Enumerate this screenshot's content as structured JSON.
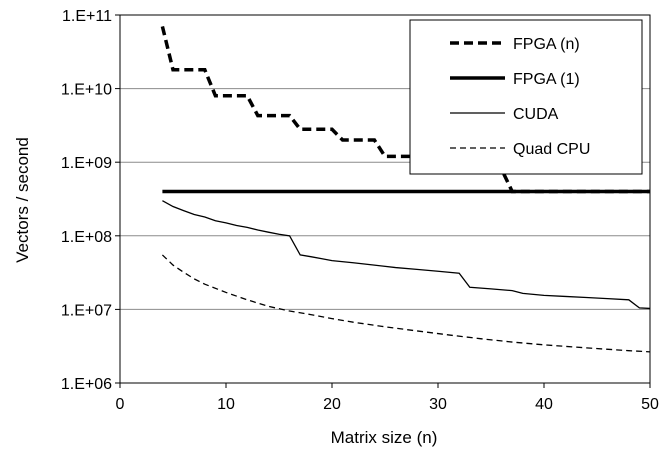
{
  "chart_data": {
    "type": "line",
    "xlabel": "Matrix size (n)",
    "ylabel": "Vectors / second",
    "xlim": [
      0,
      50
    ],
    "ylim": [
      1000000,
      100000000000
    ],
    "yscale": "log",
    "grid": "horizontal",
    "legend_position": "top-right",
    "x_ticks": [
      0,
      10,
      20,
      30,
      40,
      50
    ],
    "x_tick_labels": [
      "0",
      "10",
      "20",
      "30",
      "40",
      "50"
    ],
    "y_ticks": [
      1000000,
      10000000,
      100000000,
      1000000000,
      10000000000,
      100000000000
    ],
    "y_tick_labels": [
      "1.E+06",
      "1.E+07",
      "1.E+08",
      "1.E+09",
      "1.E+10",
      "1.E+11"
    ],
    "series": [
      {
        "name": "FPGA (n)",
        "style": "dashed",
        "stroke_width": "thick",
        "color": "#000000",
        "points": [
          [
            4,
            70000000000
          ],
          [
            5,
            18000000000
          ],
          [
            8,
            18000000000
          ],
          [
            9,
            8000000000
          ],
          [
            12,
            8000000000
          ],
          [
            13,
            4300000000
          ],
          [
            16,
            4300000000
          ],
          [
            17,
            2800000000
          ],
          [
            20,
            2800000000
          ],
          [
            21,
            2000000000
          ],
          [
            24,
            2000000000
          ],
          [
            25,
            1200000000
          ],
          [
            28,
            1200000000
          ],
          [
            29,
            800000000
          ],
          [
            36,
            800000000
          ],
          [
            37,
            400000000
          ],
          [
            50,
            400000000
          ]
        ]
      },
      {
        "name": "FPGA (1)",
        "style": "solid",
        "stroke_width": "thick",
        "color": "#000000",
        "points": [
          [
            4,
            400000000
          ],
          [
            50,
            400000000
          ]
        ]
      },
      {
        "name": "CUDA",
        "style": "solid",
        "stroke_width": "thin",
        "color": "#000000",
        "points": [
          [
            4,
            300000000
          ],
          [
            5,
            250000000
          ],
          [
            6,
            220000000
          ],
          [
            7,
            195000000
          ],
          [
            8,
            180000000
          ],
          [
            9,
            160000000
          ],
          [
            10,
            150000000
          ],
          [
            11,
            138000000
          ],
          [
            12,
            130000000
          ],
          [
            13,
            120000000
          ],
          [
            14,
            112000000
          ],
          [
            15,
            105000000
          ],
          [
            16,
            100000000
          ],
          [
            17,
            55000000
          ],
          [
            18,
            52000000
          ],
          [
            19,
            49000000
          ],
          [
            20,
            46000000
          ],
          [
            22,
            43000000
          ],
          [
            24,
            40000000
          ],
          [
            26,
            37000000
          ],
          [
            28,
            35000000
          ],
          [
            30,
            33000000
          ],
          [
            32,
            31000000
          ],
          [
            33,
            20000000
          ],
          [
            35,
            19000000
          ],
          [
            37,
            18000000
          ],
          [
            38,
            16500000
          ],
          [
            40,
            15500000
          ],
          [
            42,
            15000000
          ],
          [
            44,
            14500000
          ],
          [
            46,
            14000000
          ],
          [
            48,
            13500000
          ],
          [
            49,
            10500000
          ],
          [
            50,
            10300000
          ]
        ]
      },
      {
        "name": "Quad CPU",
        "style": "dashed",
        "stroke_width": "thin",
        "color": "#000000",
        "points": [
          [
            4,
            55000000
          ],
          [
            5,
            40000000
          ],
          [
            6,
            32000000
          ],
          [
            7,
            26000000
          ],
          [
            8,
            22000000
          ],
          [
            10,
            17000000
          ],
          [
            12,
            13500000
          ],
          [
            14,
            11000000
          ],
          [
            16,
            9500000
          ],
          [
            18,
            8500000
          ],
          [
            20,
            7500000
          ],
          [
            22,
            6700000
          ],
          [
            25,
            5800000
          ],
          [
            28,
            5100000
          ],
          [
            31,
            4500000
          ],
          [
            34,
            4000000
          ],
          [
            37,
            3600000
          ],
          [
            40,
            3300000
          ],
          [
            44,
            3000000
          ],
          [
            48,
            2750000
          ],
          [
            50,
            2650000
          ]
        ]
      }
    ]
  }
}
